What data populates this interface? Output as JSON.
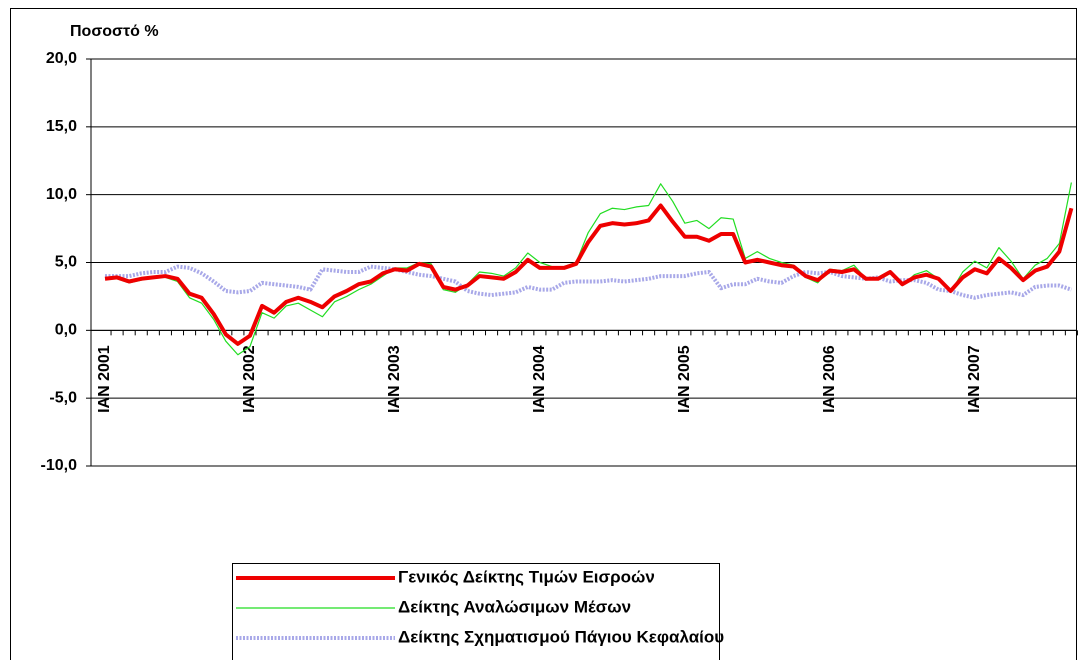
{
  "chart_data": {
    "type": "line",
    "y_label": "Ποσοστό %",
    "categories": [
      "IAN 2001",
      null,
      null,
      null,
      null,
      null,
      null,
      null,
      null,
      null,
      null,
      null,
      "IAN 2002",
      null,
      null,
      null,
      null,
      null,
      null,
      null,
      null,
      null,
      null,
      null,
      "IAN 2003",
      null,
      null,
      null,
      null,
      null,
      null,
      null,
      null,
      null,
      null,
      null,
      "IAN 2004",
      null,
      null,
      null,
      null,
      null,
      null,
      null,
      null,
      null,
      null,
      null,
      "IAN 2005",
      null,
      null,
      null,
      null,
      null,
      null,
      null,
      null,
      null,
      null,
      null,
      "IAN 2006",
      null,
      null,
      null,
      null,
      null,
      null,
      null,
      null,
      null,
      null,
      null,
      "IAN 2007",
      null,
      null,
      null,
      null,
      null,
      null,
      null,
      null
    ],
    "series": [
      {
        "name": "Γενικός Δείκτης Τιμών Εισροών",
        "color": "#ee0000",
        "width": 4,
        "values": [
          3.8,
          3.9,
          3.6,
          3.8,
          3.9,
          4.0,
          3.8,
          2.7,
          2.4,
          1.2,
          -0.3,
          -1.0,
          -0.4,
          1.8,
          1.3,
          2.1,
          2.4,
          2.1,
          1.7,
          2.5,
          2.9,
          3.4,
          3.6,
          4.2,
          4.5,
          4.4,
          4.9,
          4.7,
          3.2,
          3.0,
          3.3,
          4.0,
          3.9,
          3.8,
          4.3,
          5.2,
          4.6,
          4.6,
          4.6,
          4.9,
          6.5,
          7.7,
          7.9,
          7.8,
          7.9,
          8.1,
          9.2,
          8.0,
          6.9,
          6.9,
          6.6,
          7.1,
          7.1,
          5.0,
          5.2,
          5.0,
          4.8,
          4.7,
          4.0,
          3.7,
          4.4,
          4.3,
          4.5,
          3.8,
          3.8,
          4.3,
          3.4,
          3.9,
          4.1,
          3.8,
          2.9,
          3.9,
          4.5,
          4.2,
          5.3,
          4.6,
          3.7,
          4.4,
          4.7,
          5.8,
          9.0
        ]
      },
      {
        "name": "Δείκτης Αναλώσιμων Μέσων",
        "color": "#22dd22",
        "width": 1.2,
        "values": [
          3.9,
          3.8,
          3.5,
          3.7,
          3.9,
          3.9,
          3.6,
          2.4,
          2.0,
          0.8,
          -0.8,
          -1.8,
          -1.2,
          1.3,
          0.9,
          1.8,
          2.0,
          1.5,
          1.0,
          2.1,
          2.5,
          3.0,
          3.4,
          4.0,
          4.6,
          4.6,
          5.0,
          4.9,
          3.0,
          2.8,
          3.4,
          4.3,
          4.2,
          4.0,
          4.6,
          5.7,
          5.0,
          4.7,
          4.7,
          5.0,
          7.2,
          8.6,
          9.0,
          8.9,
          9.1,
          9.2,
          10.8,
          9.5,
          7.9,
          8.1,
          7.5,
          8.3,
          8.2,
          5.3,
          5.8,
          5.3,
          5.0,
          4.8,
          3.9,
          3.5,
          4.5,
          4.4,
          4.8,
          3.8,
          3.9,
          4.4,
          3.3,
          4.1,
          4.4,
          3.8,
          2.8,
          4.3,
          5.1,
          4.6,
          6.1,
          5.1,
          3.8,
          4.8,
          5.3,
          6.4,
          10.9
        ]
      },
      {
        "name": "Δείκτης Σχηματισμού Πάγιου Κεφαλαίου",
        "color": "#a8a8e8",
        "width": 4,
        "dashed": true,
        "values": [
          4.0,
          4.0,
          4.0,
          4.2,
          4.3,
          4.3,
          4.7,
          4.6,
          4.2,
          3.6,
          2.9,
          2.8,
          2.9,
          3.5,
          3.4,
          3.3,
          3.2,
          3.0,
          4.5,
          4.4,
          4.3,
          4.3,
          4.7,
          4.6,
          4.5,
          4.3,
          4.1,
          4.0,
          3.8,
          3.6,
          2.9,
          2.7,
          2.6,
          2.7,
          2.8,
          3.2,
          3.0,
          3.0,
          3.5,
          3.6,
          3.6,
          3.6,
          3.7,
          3.6,
          3.7,
          3.8,
          4.0,
          4.0,
          4.0,
          4.2,
          4.3,
          3.1,
          3.4,
          3.4,
          3.8,
          3.6,
          3.5,
          4.0,
          4.3,
          4.2,
          4.3,
          4.0,
          3.9,
          3.8,
          3.9,
          3.6,
          3.7,
          3.7,
          3.5,
          3.0,
          2.9,
          2.6,
          2.4,
          2.6,
          2.7,
          2.8,
          2.6,
          3.2,
          3.3,
          3.3,
          3.0
        ]
      }
    ],
    "ylim": [
      -10,
      20
    ],
    "yticks": [
      {
        "value": -10,
        "label": "-10,0"
      },
      {
        "value": -5,
        "label": "-5,0"
      },
      {
        "value": 0,
        "label": "0,0"
      },
      {
        "value": 5,
        "label": "5,0"
      },
      {
        "value": 10,
        "label": "10,0"
      },
      {
        "value": 15,
        "label": "15,0"
      },
      {
        "value": 20,
        "label": "20,0"
      }
    ],
    "grid": true,
    "legend": "bottom"
  }
}
